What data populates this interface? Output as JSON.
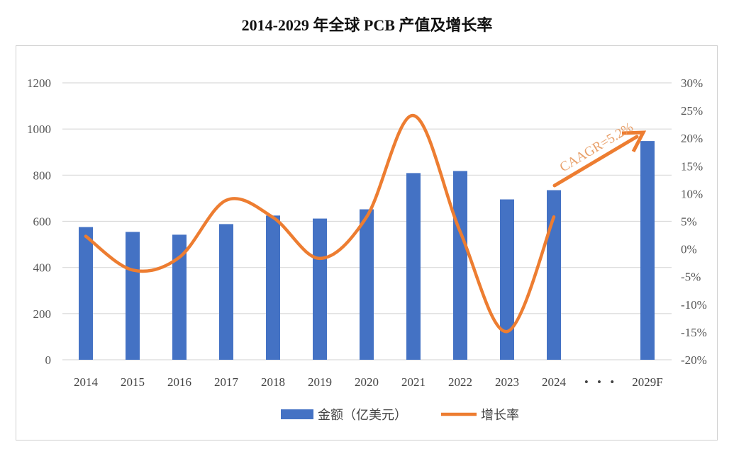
{
  "chart_data": {
    "type": "bar+line",
    "title": "2014-2029 年全球 PCB 产值及增长率",
    "categories": [
      "2014",
      "2015",
      "2016",
      "2017",
      "2018",
      "2019",
      "2020",
      "2021",
      "2022",
      "2023",
      "2024",
      "• • •",
      "2029F"
    ],
    "series": [
      {
        "name": "金额（亿美元）",
        "type": "bar",
        "axis": "left",
        "color": "#4472C4",
        "values": [
          575,
          554,
          542,
          588,
          625,
          612,
          652,
          809,
          818,
          695,
          735,
          null,
          948
        ]
      },
      {
        "name": "增长率",
        "type": "line",
        "axis": "right",
        "smooth": true,
        "color": "#ED7D31",
        "values": [
          2.3,
          -3.8,
          -1.5,
          8.8,
          5.7,
          -1.7,
          5.8,
          24.1,
          3.1,
          -14.9,
          5.8,
          null,
          null
        ]
      }
    ],
    "left_axis": {
      "min": 0,
      "max": 1200,
      "ticks": [
        "0",
        "200",
        "400",
        "600",
        "800",
        "1000",
        "1200"
      ]
    },
    "right_axis": {
      "min": -20,
      "max": 30,
      "ticks": [
        "-20%",
        "-15%",
        "-10%",
        "-5%",
        "0%",
        "5%",
        "10%",
        "15%",
        "20%",
        "25%",
        "30%"
      ]
    },
    "annotation": {
      "text": "CAAGR=5.2%",
      "color": "#ED7D31"
    },
    "grid": true,
    "legend": "bottom"
  }
}
